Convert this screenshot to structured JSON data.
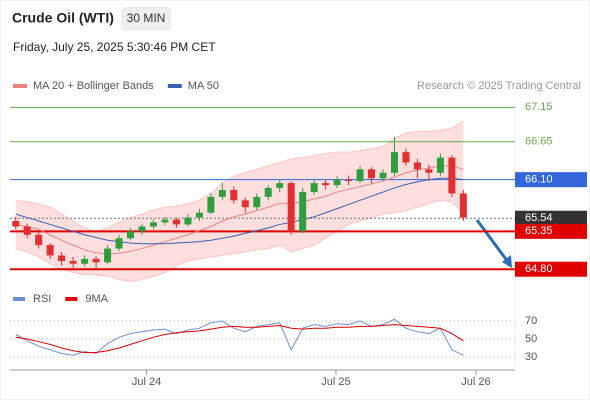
{
  "header": {
    "title": "Crude Oil (WTI)",
    "interval": "30 MIN",
    "timestamp": "Friday, July 25, 2025 5:30:46 PM CET"
  },
  "chart_data": [
    {
      "type": "candlestick",
      "credit": "Research © 2025 Trading Central",
      "up_color": "#2e9e3e",
      "down_color": "#e03030",
      "ylim": [
        64.6,
        67.3
      ],
      "xlim": [
        -0.5,
        43.5
      ],
      "xticks": [
        {
          "value": 11.4,
          "label": "Jul 24"
        },
        {
          "value": 27.9,
          "label": "Jul 25"
        },
        {
          "value": 40.1,
          "label": "Jul 26"
        }
      ],
      "open": [
        65.5,
        65.42,
        65.3,
        65.15,
        65.0,
        64.92,
        64.88,
        64.95,
        64.9,
        65.1,
        65.25,
        65.35,
        65.42,
        65.48,
        65.52,
        65.45,
        65.55,
        65.62,
        65.85,
        65.95,
        65.8,
        65.7,
        65.85,
        65.98,
        66.05,
        65.35,
        65.92,
        66.05,
        66.02,
        66.1,
        66.08,
        66.25,
        66.12,
        66.2,
        66.5,
        66.35,
        66.25,
        66.2,
        66.42,
        65.9
      ],
      "high": [
        65.56,
        65.46,
        65.34,
        65.18,
        65.05,
        64.98,
        65.0,
        64.99,
        65.15,
        65.3,
        65.4,
        65.46,
        65.52,
        65.56,
        65.55,
        65.6,
        65.68,
        65.9,
        66.05,
        66.0,
        65.84,
        65.9,
        66.02,
        66.1,
        66.08,
        65.98,
        66.1,
        66.1,
        66.15,
        66.16,
        66.3,
        66.28,
        66.25,
        66.72,
        66.55,
        66.4,
        66.32,
        66.48,
        66.45,
        65.95
      ],
      "low": [
        65.38,
        65.25,
        65.1,
        64.95,
        64.85,
        64.82,
        64.84,
        64.82,
        64.88,
        65.06,
        65.22,
        65.3,
        65.38,
        65.44,
        65.4,
        65.42,
        65.5,
        65.6,
        65.8,
        65.75,
        65.62,
        65.66,
        65.8,
        65.92,
        65.3,
        65.32,
        65.88,
        65.96,
        65.98,
        66.02,
        66.05,
        66.05,
        66.08,
        66.15,
        66.3,
        66.12,
        66.08,
        66.15,
        65.85,
        65.5
      ],
      "close": [
        65.42,
        65.3,
        65.15,
        65.0,
        64.92,
        64.88,
        64.95,
        64.9,
        65.1,
        65.25,
        65.35,
        65.42,
        65.48,
        65.52,
        65.45,
        65.55,
        65.62,
        65.85,
        65.95,
        65.8,
        65.7,
        65.85,
        65.98,
        66.05,
        65.35,
        65.92,
        66.05,
        66.02,
        66.1,
        66.08,
        66.25,
        66.12,
        66.2,
        66.5,
        66.35,
        66.25,
        66.2,
        66.42,
        65.9,
        65.55
      ],
      "band": {
        "color": "#ffdede",
        "upper": [
          65.8,
          65.78,
          65.75,
          65.7,
          65.6,
          65.5,
          65.4,
          65.35,
          65.4,
          65.48,
          65.55,
          65.6,
          65.66,
          65.7,
          65.72,
          65.75,
          65.8,
          65.9,
          66.05,
          66.15,
          66.2,
          66.25,
          66.3,
          66.35,
          66.4,
          66.42,
          66.45,
          66.48,
          66.5,
          66.5,
          66.52,
          66.55,
          66.58,
          66.7,
          66.78,
          66.8,
          66.8,
          66.82,
          66.85,
          66.95
        ],
        "lower": [
          65.1,
          65.05,
          64.98,
          64.88,
          64.8,
          64.75,
          64.72,
          64.72,
          64.7,
          64.65,
          64.62,
          64.65,
          64.7,
          64.75,
          64.85,
          64.92,
          64.95,
          64.98,
          65.0,
          65.02,
          65.05,
          65.08,
          65.1,
          65.15,
          65.05,
          65.1,
          65.15,
          65.25,
          65.35,
          65.45,
          65.5,
          65.55,
          65.6,
          65.62,
          65.65,
          65.7,
          65.75,
          65.8,
          65.78,
          65.6
        ]
      },
      "series": [
        {
          "name": "MA 20 + Bollinger Bands",
          "color": "#f08080",
          "values": [
            65.45,
            65.42,
            65.38,
            65.3,
            65.22,
            65.15,
            65.08,
            65.04,
            65.02,
            65.03,
            65.06,
            65.1,
            65.15,
            65.2,
            65.25,
            65.3,
            65.36,
            65.42,
            65.5,
            65.56,
            65.6,
            65.65,
            65.7,
            65.76,
            65.75,
            65.78,
            65.82,
            65.86,
            65.92,
            65.96,
            66.0,
            66.04,
            66.08,
            66.14,
            66.2,
            66.24,
            66.27,
            66.3,
            66.3,
            66.25
          ]
        },
        {
          "name": "MA 50",
          "color": "#3a5fb0",
          "values": [
            65.6,
            65.55,
            65.5,
            65.45,
            65.4,
            65.35,
            65.3,
            65.26,
            65.22,
            65.2,
            65.18,
            65.17,
            65.17,
            65.17,
            65.18,
            65.19,
            65.2,
            65.22,
            65.25,
            65.28,
            65.32,
            65.36,
            65.4,
            65.45,
            65.48,
            65.52,
            65.56,
            65.62,
            65.68,
            65.74,
            65.8,
            65.86,
            65.92,
            65.98,
            66.03,
            66.07,
            66.1,
            66.12,
            66.12,
            66.1
          ]
        }
      ],
      "levels": [
        {
          "value": 67.15,
          "label": "67.15",
          "color": "#6aa84f",
          "style": "text"
        },
        {
          "value": 66.65,
          "label": "66.65",
          "color": "#6aa84f",
          "style": "text"
        },
        {
          "value": 66.1,
          "label": "66.10",
          "color": "#3366dd",
          "style": "box"
        },
        {
          "value": 65.54,
          "label": "65.54",
          "color": "#333333",
          "style": "current"
        },
        {
          "value": 65.35,
          "label": "65.35",
          "color": "#e00000",
          "style": "box"
        },
        {
          "value": 64.8,
          "label": "64.80",
          "color": "#e00000",
          "style": "box"
        }
      ]
    },
    {
      "type": "line",
      "ylim": [
        20,
        80
      ],
      "yticks": [
        30,
        50,
        70
      ],
      "series": [
        {
          "name": "RSI",
          "color": "#6b8fd6",
          "values": [
            55,
            48,
            42,
            38,
            34,
            32,
            36,
            34,
            45,
            52,
            56,
            58,
            60,
            61,
            56,
            60,
            62,
            68,
            70,
            62,
            58,
            64,
            66,
            68,
            38,
            62,
            66,
            64,
            67,
            66,
            70,
            64,
            66,
            72,
            62,
            58,
            56,
            62,
            38,
            32
          ]
        },
        {
          "name": "9MA",
          "color": "#e00000",
          "values": [
            52,
            50,
            47,
            44,
            40,
            37,
            35,
            35,
            37,
            40,
            44,
            48,
            52,
            55,
            57,
            58,
            59,
            61,
            63,
            64,
            63,
            63,
            64,
            65,
            62,
            61,
            62,
            62,
            63,
            63,
            64,
            64,
            65,
            66,
            65,
            64,
            63,
            62,
            56,
            48
          ]
        }
      ]
    }
  ]
}
